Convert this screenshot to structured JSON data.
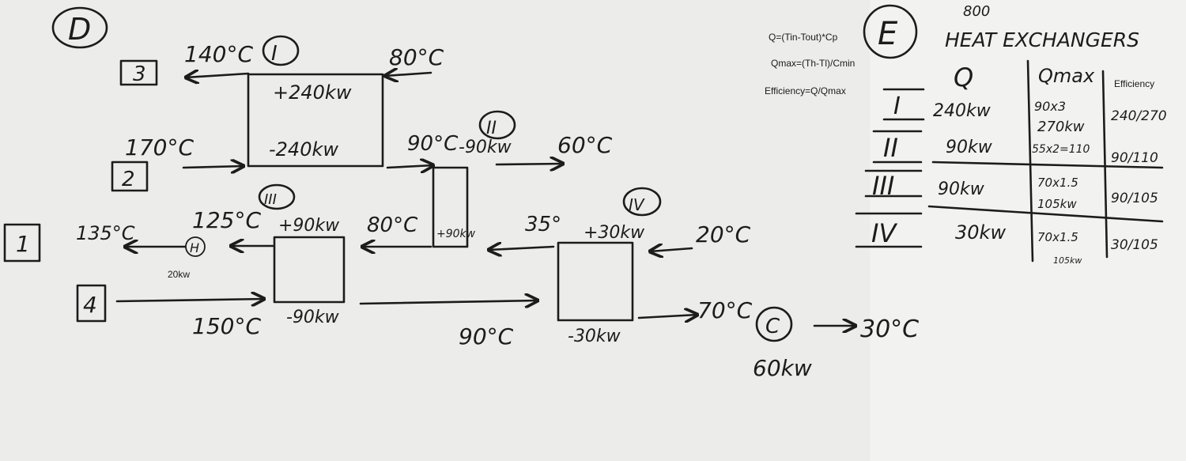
{
  "section_labels": {
    "d": "D",
    "e": "E",
    "c": "C"
  },
  "streams": {
    "s1": "1",
    "s2": "2",
    "s3": "3",
    "s4": "4"
  },
  "exchangers": {
    "I": {
      "label": "I",
      "hot_duty": "-240kw",
      "cold_duty": "+240kw"
    },
    "II": {
      "label": "II",
      "hot_duty": "-90kw",
      "cold_duty": "+90kw"
    },
    "III": {
      "label": "III",
      "hot_duty": "-90kw",
      "cold_duty": "+90kw"
    },
    "IV": {
      "label": "IV",
      "hot_duty": "-30kw",
      "cold_duty": "+30kw"
    }
  },
  "heater": {
    "label": "H",
    "duty": "20kw"
  },
  "cooler": {
    "label": "C",
    "duty": "60kw",
    "out_temp": "30°C"
  },
  "temps": {
    "t140": "140°C",
    "t80": "80°C",
    "t170": "170°C",
    "t90a": "90°C",
    "t60": "60°C",
    "t125": "125°C",
    "t135": "135°C",
    "t80b": "80°C",
    "t35": "35°",
    "t20": "20°C",
    "t150": "150°C",
    "t90b": "90°C",
    "t70": "70°C"
  },
  "formulas": {
    "q": "Q=(Tin-Tout)*Cp",
    "qmax": "Qmax=(Th-Tl)/Cmin",
    "eff": "Efficiency=Q/Qmax"
  },
  "table": {
    "note": "800",
    "title": "HEAT EXCHANGERS",
    "headers": {
      "q": "Q",
      "qmax": "Qmax",
      "efficiency": "Efficiency"
    },
    "rows": [
      {
        "id": "I",
        "q": "240kw",
        "qmax_calc": "90x3",
        "qmax": "270kw",
        "eff": "240/270"
      },
      {
        "id": "II",
        "q": "90kw",
        "qmax_calc": "55x2=110",
        "qmax": "",
        "eff": "90/110"
      },
      {
        "id": "III",
        "q": "90kw",
        "qmax_calc": "70x1.5",
        "qmax": "105kw",
        "eff": "90/105"
      },
      {
        "id": "IV",
        "q": "30kw",
        "qmax_calc": "70x1.5",
        "qmax": "105kw",
        "eff": "30/105"
      }
    ]
  }
}
